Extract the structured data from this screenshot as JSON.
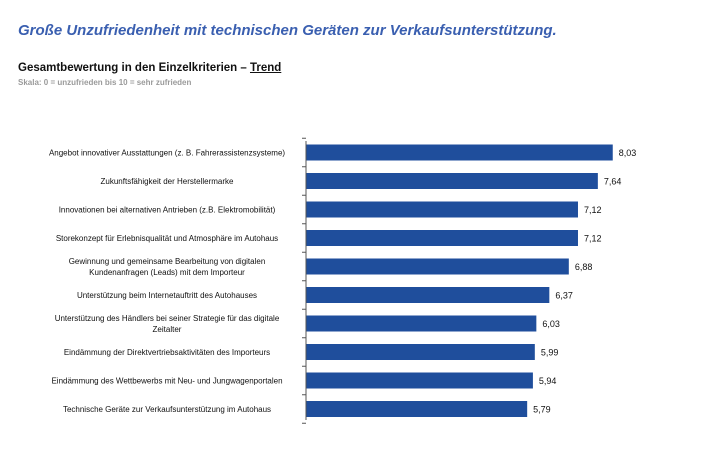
{
  "headline": "Große Unzufriedenheit mit technischen Geräten zur Verkaufsunterstützung.",
  "subtitle_main": "Gesamtbewertung in den Einzelkriterien – ",
  "subtitle_trend": "Trend",
  "scale_note": "Skala: 0 = unzufrieden bis 10 = sehr zufrieden",
  "colors": {
    "bar": "#1f4e9c",
    "headline": "#3a5fb0",
    "axis": "#555555"
  },
  "chart_data": {
    "type": "bar",
    "orientation": "horizontal",
    "xlim": [
      0,
      10
    ],
    "grid": false,
    "categories": [
      [
        "Angebot innovativer Ausstattungen (z. B. Fahrerassistenzsysteme)"
      ],
      [
        "Zukunftsfähigkeit der Herstellermarke"
      ],
      [
        "Innovationen bei alternativen Antrieben (z.B. Elektromobilität)"
      ],
      [
        "Storekonzept für Erlebnisqualität und Atmosphäre im Autohaus"
      ],
      [
        "Gewinnung und gemeinsame Bearbeitung von digitalen",
        "Kundenanfragen (Leads) mit dem Importeur"
      ],
      [
        "Unterstützung beim Internetauftritt des Autohauses"
      ],
      [
        "Unterstützung des Händlers bei seiner Strategie für das digitale",
        "Zeitalter"
      ],
      [
        "Eindämmung der Direktvertriebsaktivitäten des Importeurs"
      ],
      [
        "Eindämmung des Wettbewerbs mit Neu- und Jungwagenportalen"
      ],
      [
        "Technische Geräte zur Verkaufsunterstützung im Autohaus"
      ]
    ],
    "values": [
      8.03,
      7.64,
      7.12,
      7.12,
      6.88,
      6.37,
      6.03,
      5.99,
      5.94,
      5.79
    ],
    "value_labels": [
      "8,03",
      "7,64",
      "7,12",
      "7,12",
      "6,88",
      "6,37",
      "6,03",
      "5,99",
      "5,94",
      "5,79"
    ]
  }
}
